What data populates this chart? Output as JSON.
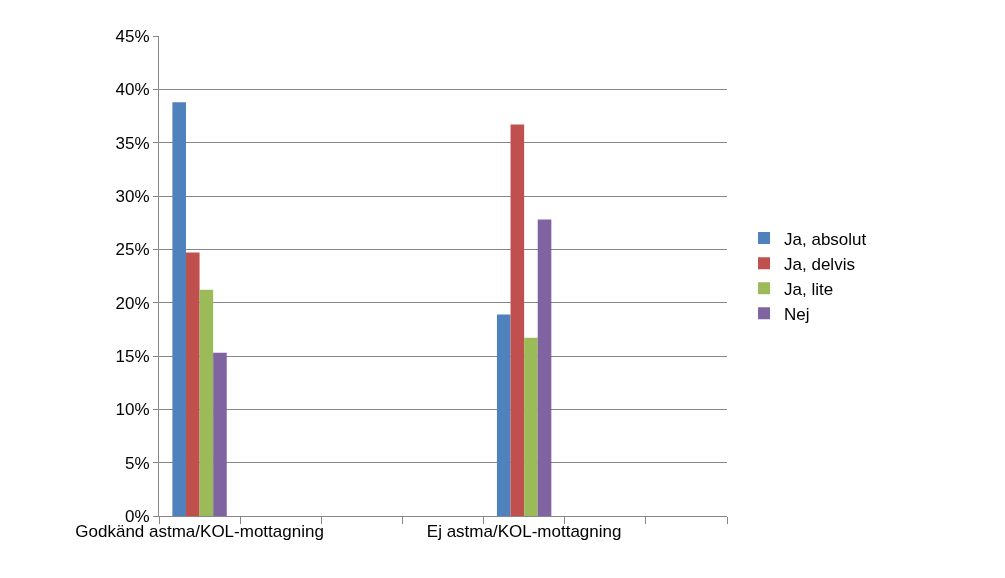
{
  "chart_data": {
    "type": "bar",
    "categories": [
      "Godkänd astma/KOL-mottagning",
      null,
      null,
      null,
      "Ej astma/KOL-mottagning",
      null,
      null
    ],
    "series": [
      {
        "name": "Ja, absolut",
        "color": "#4f81bd",
        "values": [
          38.8,
          null,
          null,
          null,
          18.9,
          null,
          null
        ]
      },
      {
        "name": "Ja, delvis",
        "color": "#c0504d",
        "values": [
          24.7,
          null,
          null,
          null,
          36.7,
          null,
          null
        ]
      },
      {
        "name": "Ja, lite",
        "color": "#9bbb59",
        "values": [
          21.2,
          null,
          null,
          null,
          16.7,
          null,
          null
        ]
      },
      {
        "name": "Nej",
        "color": "#8064a2",
        "values": [
          15.3,
          null,
          null,
          null,
          27.8,
          null,
          null
        ]
      }
    ],
    "ylim": [
      0,
      45
    ],
    "yticks": [
      {
        "value": 0,
        "label": "0%"
      },
      {
        "value": 5,
        "label": "5%"
      },
      {
        "value": 10,
        "label": "10%"
      },
      {
        "value": 15,
        "label": "15%"
      },
      {
        "value": 20,
        "label": "20%"
      },
      {
        "value": 25,
        "label": "25%"
      },
      {
        "value": 30,
        "label": "30%"
      },
      {
        "value": 35,
        "label": "35%"
      },
      {
        "value": 40,
        "label": "40%"
      },
      {
        "value": 45,
        "label": "45%"
      }
    ],
    "grid": "y",
    "legend": "right"
  }
}
